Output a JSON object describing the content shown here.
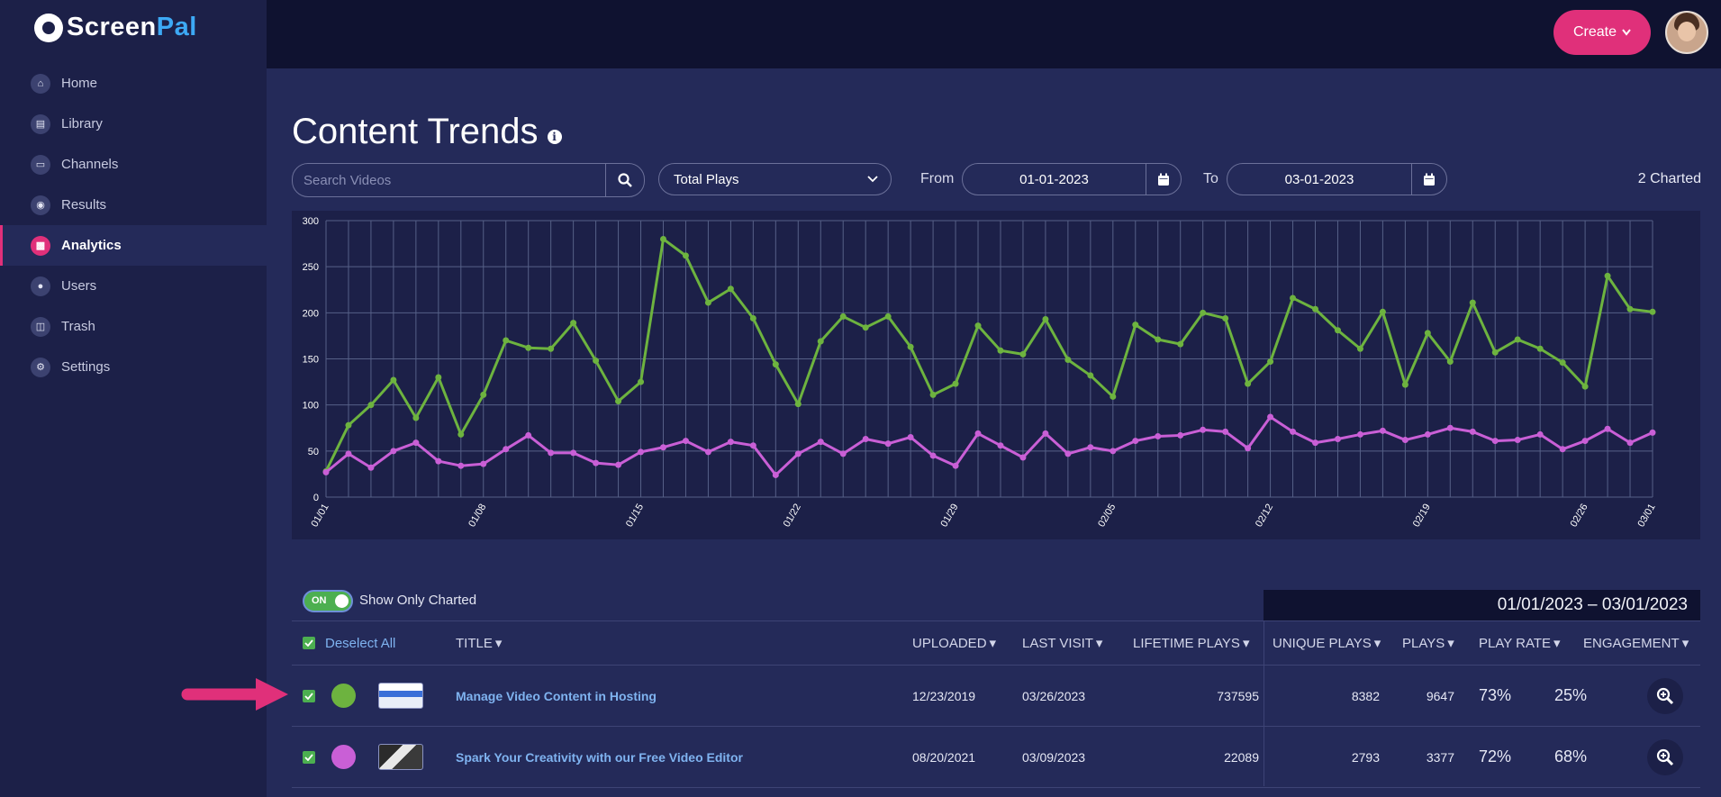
{
  "brand": {
    "name_part1": "Screen",
    "name_part2": "Pal"
  },
  "sidebar": {
    "items": [
      {
        "label": "Home",
        "icon": "home-icon"
      },
      {
        "label": "Library",
        "icon": "folder-icon"
      },
      {
        "label": "Channels",
        "icon": "monitor-icon"
      },
      {
        "label": "Results",
        "icon": "award-icon"
      },
      {
        "label": "Analytics",
        "icon": "chart-icon",
        "active": true
      },
      {
        "label": "Users",
        "icon": "user-icon"
      },
      {
        "label": "Trash",
        "icon": "trash-icon"
      },
      {
        "label": "Settings",
        "icon": "gear-icon"
      }
    ]
  },
  "header": {
    "create_label": "Create"
  },
  "page": {
    "title": "Content Trends"
  },
  "filters": {
    "search_placeholder": "Search Videos",
    "metric": "Total Plays",
    "from_label": "From",
    "from_date": "01-01-2023",
    "to_label": "To",
    "to_date": "03-01-2023",
    "charted_count": "2 Charted"
  },
  "colors": {
    "accent": "#e0307a",
    "series1": "#6db33f",
    "series2": "#c95fd6"
  },
  "chart_data": {
    "type": "line",
    "ylim": [
      0,
      300
    ],
    "yticks": [
      0,
      50,
      100,
      150,
      200,
      250,
      300
    ],
    "xtick_labels": [
      "01/01",
      "01/08",
      "01/15",
      "01/22",
      "01/29",
      "02/05",
      "02/12",
      "02/19",
      "02/26",
      "03/01"
    ],
    "x": [
      "01/01",
      "01/02",
      "01/03",
      "01/04",
      "01/05",
      "01/06",
      "01/07",
      "01/08",
      "01/09",
      "01/10",
      "01/11",
      "01/12",
      "01/13",
      "01/14",
      "01/15",
      "01/16",
      "01/17",
      "01/18",
      "01/19",
      "01/20",
      "01/21",
      "01/22",
      "01/23",
      "01/24",
      "01/25",
      "01/26",
      "01/27",
      "01/28",
      "01/29",
      "01/30",
      "01/31",
      "02/01",
      "02/02",
      "02/03",
      "02/04",
      "02/05",
      "02/06",
      "02/07",
      "02/08",
      "02/09",
      "02/10",
      "02/11",
      "02/12",
      "02/13",
      "02/14",
      "02/15",
      "02/16",
      "02/17",
      "02/18",
      "02/19",
      "02/20",
      "02/21",
      "02/22",
      "02/23",
      "02/24",
      "02/25",
      "02/26",
      "02/27",
      "02/28",
      "03/01"
    ],
    "series": [
      {
        "values": [
          28,
          78,
          100,
          127,
          86,
          130,
          68,
          111,
          170,
          162,
          161,
          189,
          148,
          104,
          125,
          280,
          262,
          211,
          226,
          194,
          144,
          101,
          169,
          196,
          184,
          196,
          163,
          111,
          123,
          186,
          159,
          155,
          193,
          149,
          132,
          109,
          187,
          171,
          166,
          200,
          194,
          123,
          147,
          216,
          204,
          181,
          161,
          201,
          122,
          178,
          147,
          211,
          157,
          171,
          161,
          146,
          120,
          240,
          204,
          201
        ]
      },
      {
        "values": [
          27,
          47,
          32,
          50,
          59,
          39,
          34,
          36,
          52,
          67,
          48,
          48,
          37,
          35,
          49,
          54,
          61,
          49,
          60,
          56,
          24,
          47,
          60,
          47,
          63,
          58,
          65,
          45,
          34,
          69,
          56,
          43,
          69,
          47,
          54,
          50,
          61,
          66,
          67,
          73,
          71,
          53,
          87,
          71,
          59,
          63,
          68,
          72,
          62,
          68,
          75,
          71,
          61,
          62,
          68,
          52,
          61,
          74,
          59,
          70
        ]
      }
    ]
  },
  "toggle": {
    "state_label": "ON",
    "label": "Show Only Charted"
  },
  "table": {
    "date_range": "01/01/2023 – 03/01/2023",
    "deselect_label": "Deselect All",
    "headers": {
      "title": "TITLE",
      "uploaded": "UPLOADED",
      "last_visit": "LAST VISIT",
      "lifetime_plays": "LIFETIME PLAYS",
      "unique_plays": "UNIQUE PLAYS",
      "plays": "PLAYS",
      "play_rate": "PLAY RATE",
      "engagement": "ENGAGEMENT"
    },
    "rows": [
      {
        "color": "#6db33f",
        "title": "Manage Video Content in Hosting",
        "uploaded": "12/23/2019",
        "last_visit": "03/26/2023",
        "lifetime_plays": "737595",
        "unique_plays": "8382",
        "plays": "9647",
        "play_rate": "73%",
        "engagement": "25%"
      },
      {
        "color": "#c95fd6",
        "title": "Spark Your Creativity with our Free Video Editor",
        "uploaded": "08/20/2021",
        "last_visit": "03/09/2023",
        "lifetime_plays": "22089",
        "unique_plays": "2793",
        "plays": "3377",
        "play_rate": "72%",
        "engagement": "68%"
      }
    ]
  }
}
